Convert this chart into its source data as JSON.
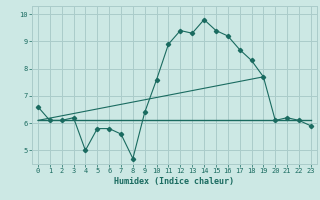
{
  "xlabel": "Humidex (Indice chaleur)",
  "bg_color": "#cce8e4",
  "grid_color": "#aaccca",
  "line_color": "#1a6b60",
  "xlim": [
    -0.5,
    23.5
  ],
  "ylim": [
    4.5,
    10.3
  ],
  "yticks": [
    5,
    6,
    7,
    8,
    9,
    10
  ],
  "xticks": [
    0,
    1,
    2,
    3,
    4,
    5,
    6,
    7,
    8,
    9,
    10,
    11,
    12,
    13,
    14,
    15,
    16,
    17,
    18,
    19,
    20,
    21,
    22,
    23
  ],
  "series1_x": [
    0,
    1,
    2,
    3,
    4,
    5,
    6,
    7,
    8,
    9,
    10,
    11,
    12,
    13,
    14,
    15,
    16,
    17,
    18,
    19,
    20,
    21,
    22,
    23
  ],
  "series1_y": [
    6.6,
    6.1,
    6.1,
    6.2,
    5.0,
    5.8,
    5.8,
    5.6,
    4.7,
    6.4,
    7.6,
    8.9,
    9.4,
    9.3,
    9.8,
    9.4,
    9.2,
    8.7,
    8.3,
    7.7,
    6.1,
    6.2,
    6.1,
    5.9
  ],
  "series2_x": [
    0,
    4,
    9,
    10,
    19,
    20,
    23
  ],
  "series2_y": [
    6.1,
    6.1,
    6.1,
    6.1,
    6.1,
    6.1,
    6.1
  ],
  "series3_x": [
    0,
    19
  ],
  "series3_y": [
    6.1,
    7.7
  ]
}
